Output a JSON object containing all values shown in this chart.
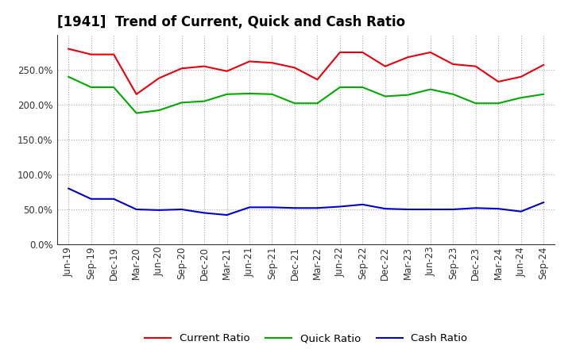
{
  "title": "[1941]  Trend of Current, Quick and Cash Ratio",
  "x_labels": [
    "Jun-19",
    "Sep-19",
    "Dec-19",
    "Mar-20",
    "Jun-20",
    "Sep-20",
    "Dec-20",
    "Mar-21",
    "Jun-21",
    "Sep-21",
    "Dec-21",
    "Mar-22",
    "Jun-22",
    "Sep-22",
    "Dec-22",
    "Mar-23",
    "Jun-23",
    "Sep-23",
    "Dec-23",
    "Mar-24",
    "Jun-24",
    "Sep-24"
  ],
  "current_ratio": [
    280,
    272,
    272,
    215,
    238,
    252,
    255,
    248,
    262,
    260,
    253,
    236,
    275,
    275,
    255,
    268,
    275,
    258,
    255,
    233,
    240,
    257
  ],
  "quick_ratio": [
    240,
    225,
    225,
    188,
    192,
    203,
    205,
    215,
    216,
    215,
    202,
    202,
    225,
    225,
    212,
    214,
    222,
    215,
    202,
    202,
    210,
    215
  ],
  "cash_ratio": [
    80,
    65,
    65,
    50,
    49,
    50,
    45,
    42,
    53,
    53,
    52,
    52,
    54,
    57,
    51,
    50,
    50,
    50,
    52,
    51,
    47,
    60
  ],
  "current_color": "#e8000d",
  "quick_color": "#00aa00",
  "cash_color": "#0000cc",
  "ylim": [
    0,
    300
  ],
  "yticks": [
    0,
    50,
    100,
    150,
    200,
    250
  ],
  "ytick_labels": [
    "0.0%",
    "50.0%",
    "100.0%",
    "150.0%",
    "200.0%",
    "250.0%"
  ],
  "legend_labels": [
    "Current Ratio",
    "Quick Ratio",
    "Cash Ratio"
  ],
  "background_color": "#ffffff",
  "plot_bg_color": "#ffffff",
  "grid_color": "#aaaaaa",
  "line_width": 1.5,
  "title_fontsize": 12,
  "tick_fontsize": 8.5,
  "legend_fontsize": 9.5
}
